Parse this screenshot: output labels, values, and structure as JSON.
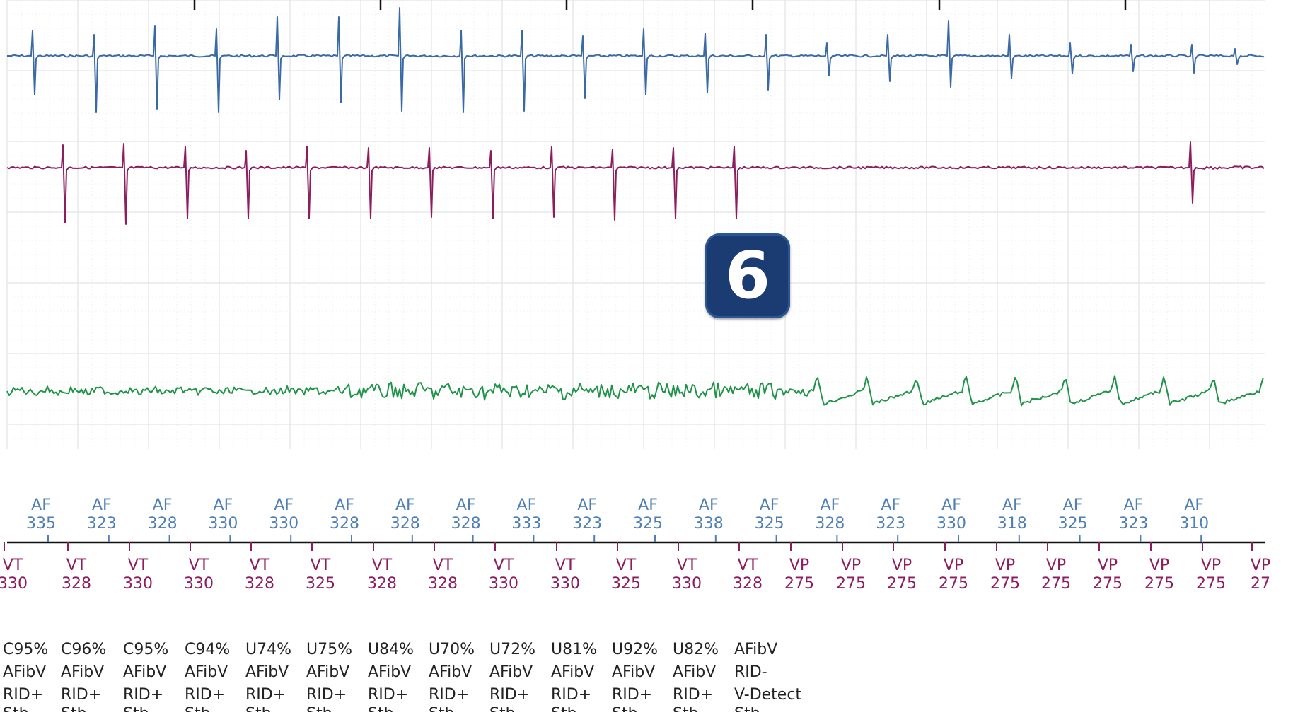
{
  "badge": {
    "label": "6",
    "color": "#1b3c73"
  },
  "colors": {
    "grid_major": "#e3e3e3",
    "grid_minor": "#efefef",
    "channel_1": "#3a6aa6",
    "channel_2": "#8c1d5f",
    "channel_3": "#1f9448",
    "atrial_marker": "#4e7fb5",
    "ventricular_marker": "#8c1d5f",
    "classification_text": "#222222"
  },
  "channels": [
    {
      "name": "channel-1",
      "color_key": "channel_1",
      "beats": 21
    },
    {
      "name": "channel-2",
      "color_key": "channel_2",
      "beats": 13
    },
    {
      "name": "channel-3",
      "color_key": "channel_3"
    }
  ],
  "atrial_markers": [
    {
      "label": "AF",
      "value": "335"
    },
    {
      "label": "AF",
      "value": "323"
    },
    {
      "label": "AF",
      "value": "328"
    },
    {
      "label": "AF",
      "value": "330"
    },
    {
      "label": "AF",
      "value": "330"
    },
    {
      "label": "AF",
      "value": "328"
    },
    {
      "label": "AF",
      "value": "328"
    },
    {
      "label": "AF",
      "value": "328"
    },
    {
      "label": "AF",
      "value": "333"
    },
    {
      "label": "AF",
      "value": "323"
    },
    {
      "label": "AF",
      "value": "325"
    },
    {
      "label": "AF",
      "value": "338"
    },
    {
      "label": "AF",
      "value": "325"
    },
    {
      "label": "AF",
      "value": "328"
    },
    {
      "label": "AF",
      "value": "323"
    },
    {
      "label": "AF",
      "value": "330"
    },
    {
      "label": "AF",
      "value": "318"
    },
    {
      "label": "AF",
      "value": "325"
    },
    {
      "label": "AF",
      "value": "323"
    },
    {
      "label": "AF",
      "value": "310"
    }
  ],
  "ventricular_markers": [
    {
      "label": "VT",
      "value": "330"
    },
    {
      "label": "VT",
      "value": "328"
    },
    {
      "label": "VT",
      "value": "330"
    },
    {
      "label": "VT",
      "value": "330"
    },
    {
      "label": "VT",
      "value": "328"
    },
    {
      "label": "VT",
      "value": "325"
    },
    {
      "label": "VT",
      "value": "328"
    },
    {
      "label": "VT",
      "value": "328"
    },
    {
      "label": "VT",
      "value": "330"
    },
    {
      "label": "VT",
      "value": "330"
    },
    {
      "label": "VT",
      "value": "325"
    },
    {
      "label": "VT",
      "value": "330"
    },
    {
      "label": "VT",
      "value": "328"
    },
    {
      "label": "VP",
      "value": "275"
    },
    {
      "label": "VP",
      "value": "275"
    },
    {
      "label": "VP",
      "value": "275"
    },
    {
      "label": "VP",
      "value": "275"
    },
    {
      "label": "VP",
      "value": "275"
    },
    {
      "label": "VP",
      "value": "275"
    },
    {
      "label": "VP",
      "value": "275"
    },
    {
      "label": "VP",
      "value": "275"
    },
    {
      "label": "VP",
      "value": "275"
    },
    {
      "label": "VP",
      "value": "27"
    }
  ],
  "classifications": [
    [
      "C95%",
      "AFibV",
      "RID+",
      "Stb"
    ],
    [
      "C96%",
      "AFibV",
      "RID+",
      "Stb"
    ],
    [
      "C95%",
      "AFibV",
      "RID+",
      "Stb"
    ],
    [
      "C94%",
      "AFibV",
      "RID+",
      "Stb"
    ],
    [
      "U74%",
      "AFibV",
      "RID+",
      "Stb"
    ],
    [
      "U75%",
      "AFibV",
      "RID+",
      "Stb"
    ],
    [
      "U84%",
      "AFibV",
      "RID+",
      "Stb"
    ],
    [
      "U70%",
      "AFibV",
      "RID+",
      "Stb"
    ],
    [
      "U72%",
      "AFibV",
      "RID+",
      "Stb"
    ],
    [
      "U81%",
      "AFibV",
      "RID+",
      "Stb"
    ],
    [
      "U92%",
      "AFibV",
      "RID+",
      "Stb"
    ],
    [
      "U82%",
      "AFibV",
      "RID+",
      "Stb"
    ],
    [
      "AFibV",
      "RID-",
      "V-Detect",
      "Stb"
    ]
  ]
}
